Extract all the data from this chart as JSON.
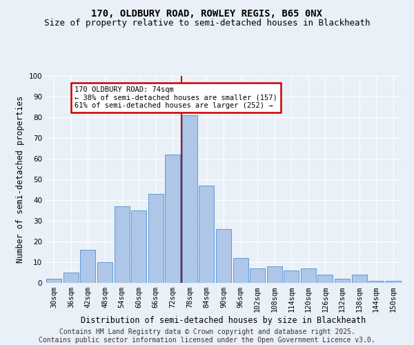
{
  "title1": "170, OLDBURY ROAD, ROWLEY REGIS, B65 0NX",
  "title2": "Size of property relative to semi-detached houses in Blackheath",
  "xlabel": "Distribution of semi-detached houses by size in Blackheath",
  "ylabel": "Number of semi-detached properties",
  "categories": [
    "30sqm",
    "36sqm",
    "42sqm",
    "48sqm",
    "54sqm",
    "60sqm",
    "66sqm",
    "72sqm",
    "78sqm",
    "84sqm",
    "90sqm",
    "96sqm",
    "102sqm",
    "108sqm",
    "114sqm",
    "120sqm",
    "126sqm",
    "132sqm",
    "138sqm",
    "144sqm",
    "150sqm"
  ],
  "values": [
    2,
    5,
    16,
    10,
    37,
    35,
    43,
    62,
    81,
    47,
    26,
    12,
    7,
    8,
    6,
    7,
    4,
    2,
    4,
    1,
    1
  ],
  "bar_color": "#aec6e8",
  "bar_edge_color": "#5b9bd5",
  "annotation_text": "170 OLDBURY ROAD: 74sqm\n← 38% of semi-detached houses are smaller (157)\n61% of semi-detached houses are larger (252) →",
  "annotation_box_color": "#ffffff",
  "annotation_box_edge": "#cc0000",
  "vline_color": "#cc0000",
  "ylim": [
    0,
    100
  ],
  "yticks": [
    0,
    10,
    20,
    30,
    40,
    50,
    60,
    70,
    80,
    90,
    100
  ],
  "bg_color": "#eaf0f8",
  "fig_bg_color": "#eaf0f8",
  "footer": "Contains HM Land Registry data © Crown copyright and database right 2025.\nContains public sector information licensed under the Open Government Licence v3.0.",
  "title1_fontsize": 10,
  "title2_fontsize": 9,
  "xlabel_fontsize": 8.5,
  "ylabel_fontsize": 8.5,
  "footer_fontsize": 7,
  "tick_fontsize": 7.5,
  "annot_fontsize": 7.5
}
